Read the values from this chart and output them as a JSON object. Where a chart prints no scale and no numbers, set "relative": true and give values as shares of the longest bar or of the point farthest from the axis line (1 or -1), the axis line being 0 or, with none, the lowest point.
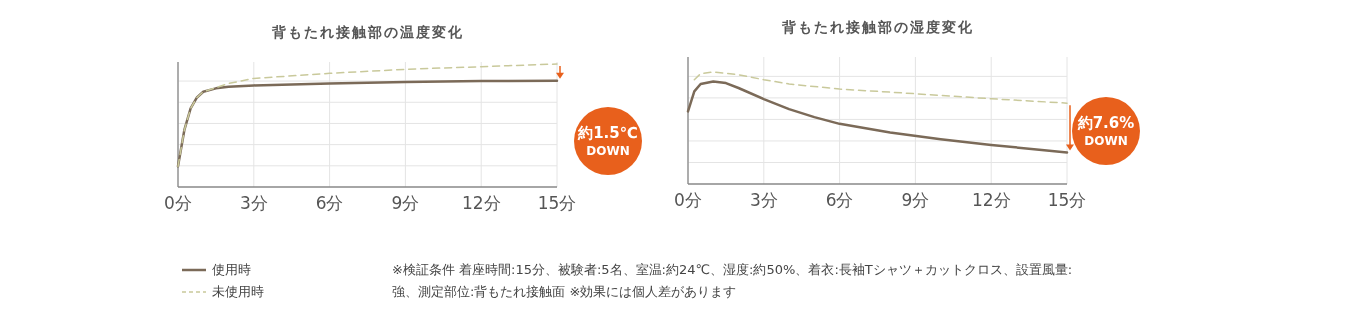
{
  "chart_data": [
    {
      "type": "line",
      "title": "背もたれ接触部の温度変化",
      "relative": true,
      "xlim": [
        0,
        15
      ],
      "xticks": [
        {
          "value": 0,
          "label": "0分"
        },
        {
          "value": 3,
          "label": "3分"
        },
        {
          "value": 6,
          "label": "6分"
        },
        {
          "value": 9,
          "label": "9分"
        },
        {
          "value": 12,
          "label": "12分"
        },
        {
          "value": 15,
          "label": "15分"
        }
      ],
      "grid": true,
      "legend": "bottom left",
      "series": [
        {
          "name": "使用時",
          "color": "#7b6a58",
          "line_style": "solid",
          "x": [
            0,
            0.25,
            0.5,
            0.75,
            1,
            1.5,
            2,
            3,
            6,
            9,
            12,
            15
          ],
          "values": [
            0.168,
            0.462,
            0.639,
            0.728,
            0.774,
            0.802,
            0.815,
            0.826,
            0.842,
            0.853,
            0.861,
            0.864
          ]
        },
        {
          "name": "未使用時",
          "color": "#c9c99b",
          "line_style": "dashed",
          "x": [
            0,
            0.25,
            0.5,
            0.75,
            1,
            1.5,
            2,
            3,
            6,
            9,
            12,
            15
          ],
          "values": [
            0.168,
            0.462,
            0.639,
            0.728,
            0.774,
            0.807,
            0.842,
            0.883,
            0.924,
            0.957,
            0.978,
            1
          ]
        }
      ],
      "annotations": [
        "約1.5℃ DOWN",
        "※検証条件 着座時間:15分、被験者:5名、室温:約24℃、湿度:約50%、着衣:長袖Tシャツ＋カットクロス、設置風量:強、測定部位:背もたれ接触面 ※効果には個人差があります"
      ]
    },
    {
      "type": "line",
      "title": "背もたれ接触部の湿度変化",
      "relative": true,
      "xlim": [
        0,
        15
      ],
      "xticks": [
        {
          "value": 0,
          "label": "0分"
        },
        {
          "value": 3,
          "label": "3分"
        },
        {
          "value": 6,
          "label": "6分"
        },
        {
          "value": 9,
          "label": "9分"
        },
        {
          "value": 12,
          "label": "12分"
        },
        {
          "value": 15,
          "label": "15分"
        }
      ],
      "grid": true,
      "series": [
        {
          "color": "#7b6a58",
          "line_style": "solid",
          "x": [
            0,
            0.25,
            0.5,
            1,
            1.5,
            2,
            3,
            4,
            5,
            6,
            8,
            10,
            12,
            14,
            15
          ],
          "values": [
            0.648,
            0.827,
            0.893,
            0.916,
            0.901,
            0.857,
            0.758,
            0.669,
            0.597,
            0.537,
            0.46,
            0.4,
            0.349,
            0.304,
            0.281
          ]
        },
        {
          "color": "#c9c99b",
          "line_style": "dashed",
          "x": [
            0.25,
            0.5,
            1,
            2,
            3,
            4,
            6,
            9,
            12,
            15
          ],
          "values": [
            0.931,
            0.985,
            1,
            0.976,
            0.931,
            0.893,
            0.848,
            0.806,
            0.761,
            0.722
          ]
        }
      ],
      "annotations": [
        "約7.6% DOWN"
      ]
    }
  ]
}
